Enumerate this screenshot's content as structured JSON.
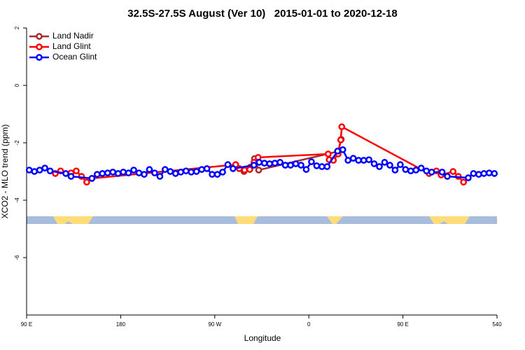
{
  "chart_data": {
    "type": "line",
    "title": "32.5S-27.5S August (Ver 10)   2015-01-01 to 2020-12-18",
    "xlabel": "Longitude",
    "ylabel": "XCO2 - MLO trend (ppm)",
    "xlim": [
      90,
      540
    ],
    "ylim": [
      -8,
      2
    ],
    "xticks": [
      {
        "value": 90,
        "label": "90 E"
      },
      180,
      {
        "value": 270,
        "label": "90 W"
      },
      {
        "value": 360,
        "label": "0"
      },
      {
        "value": 450,
        "label": "90 E"
      },
      540
    ],
    "yticks": [
      -6,
      -4,
      -2,
      0,
      2
    ],
    "legend": "top-left",
    "series": [
      {
        "name": "Land Nadir",
        "color": "#a52a2a",
        "x": [
          298,
          304,
          308,
          312,
          388,
          391
        ],
        "values": [
          -3.0,
          -2.85,
          -2.55,
          -2.95,
          -2.3,
          -1.88
        ]
      },
      {
        "name": "Land Glint",
        "color": "#ff0000",
        "x": [
          117.5,
          122.5,
          132.5,
          137.5,
          142.5,
          147.5,
          152.5,
          290,
          293.5,
          298.5,
          303.5,
          307.5,
          311.5,
          378.5,
          379.5,
          383.5,
          388,
          390.5,
          391.5,
          475,
          482,
          486.5,
          498,
          503,
          508
        ],
        "values": [
          -3.07,
          -2.98,
          -3.05,
          -2.98,
          -3.17,
          -3.37,
          -3.24,
          -2.76,
          -2.9,
          -2.95,
          -2.93,
          -2.68,
          -2.51,
          -2.39,
          -2.59,
          -2.61,
          -2.39,
          -1.9,
          -1.44,
          -3.07,
          -2.98,
          -3.12,
          -3.0,
          -3.17,
          -3.37
        ]
      },
      {
        "name": "Ocean Glint",
        "color": "#0000ff",
        "x": [
          92.5,
          97.5,
          102.5,
          107.5,
          112.5,
          127.5,
          132.5,
          152.5,
          157.5,
          162.5,
          167.5,
          172.5,
          177.5,
          182.5,
          187.5,
          192.5,
          197.5,
          202.5,
          207.5,
          212.5,
          217.5,
          222.5,
          227.5,
          232.5,
          237.5,
          242.5,
          247.5,
          252.5,
          257.5,
          262.5,
          267.5,
          272.5,
          277.5,
          282.5,
          287.5,
          307.5,
          312.5,
          317.5,
          322.5,
          327.5,
          332.5,
          337.5,
          342.5,
          347.5,
          352.5,
          357.5,
          362.5,
          367.5,
          372.5,
          377.5,
          387.5,
          392.5,
          397.5,
          402.5,
          407.5,
          412.5,
          417.5,
          422.5,
          427.5,
          432.5,
          437.5,
          442.5,
          447.5,
          452.5,
          457.5,
          462.5,
          467.5,
          472.5,
          477.5,
          487.5,
          492.5,
          512.5,
          517.5,
          522.5,
          527.5,
          532.5,
          537.5
        ],
        "values": [
          -2.95,
          -3.0,
          -2.95,
          -2.88,
          -2.98,
          -3.07,
          -3.17,
          -3.24,
          -3.1,
          -3.07,
          -3.05,
          -3.02,
          -3.07,
          -3.02,
          -3.05,
          -2.95,
          -3.05,
          -3.1,
          -2.93,
          -3.05,
          -3.17,
          -2.93,
          -3.0,
          -3.07,
          -3.02,
          -2.98,
          -3.02,
          -3.0,
          -2.93,
          -2.9,
          -3.1,
          -3.1,
          -3.02,
          -2.76,
          -2.9,
          -2.78,
          -2.68,
          -2.71,
          -2.73,
          -2.71,
          -2.68,
          -2.78,
          -2.78,
          -2.73,
          -2.78,
          -2.93,
          -2.66,
          -2.8,
          -2.83,
          -2.83,
          -2.29,
          -2.24,
          -2.61,
          -2.54,
          -2.61,
          -2.61,
          -2.59,
          -2.73,
          -2.83,
          -2.68,
          -2.78,
          -2.95,
          -2.76,
          -2.93,
          -2.98,
          -2.95,
          -2.88,
          -2.98,
          -3.02,
          -3.02,
          -3.17,
          -3.22,
          -3.07,
          -3.1,
          -3.07,
          -3.05,
          -3.07
        ]
      }
    ]
  }
}
